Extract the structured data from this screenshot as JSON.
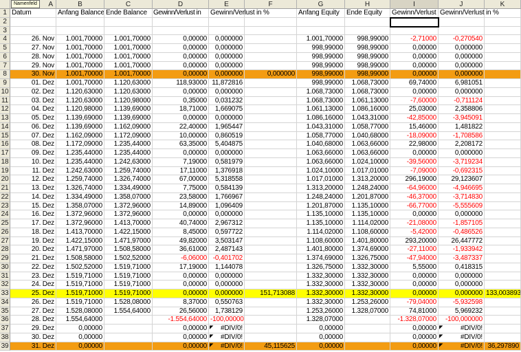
{
  "name_box_tooltip": "Namenfeld",
  "colors": {
    "negative": "#ff0000",
    "highlight_orange": "#f39c12",
    "highlight_yellow": "#ffff00"
  },
  "selected_cell": "I2",
  "columns": [
    "A",
    "B",
    "C",
    "D",
    "E",
    "F",
    "G",
    "H",
    "I",
    "J",
    "K"
  ],
  "header_row": [
    "Datum",
    "Anfang Balance",
    "Ende Balance",
    "Gewinn/Verlust in",
    "Gewinn/Verlust in %",
    "",
    "Anfang Equity",
    "Ende Equity",
    "Gewinn/Verlust",
    "Gewinn/Verlust in %",
    ""
  ],
  "rows": [
    {
      "n": 4,
      "c": [
        "26. Nov",
        "1.001,70000",
        "1.001,70000",
        "0,00000",
        "0,000000",
        "",
        "1.001,70000",
        "998,99000",
        "-2,71000",
        "-0,270540",
        ""
      ]
    },
    {
      "n": 5,
      "c": [
        "27. Nov",
        "1.001,70000",
        "1.001,70000",
        "0,00000",
        "0,000000",
        "",
        "998,99000",
        "998,99000",
        "0,00000",
        "0,000000",
        ""
      ]
    },
    {
      "n": 6,
      "c": [
        "28. Nov",
        "1.001,70000",
        "1.001,70000",
        "0,00000",
        "0,000000",
        "",
        "998,99000",
        "998,99000",
        "0,00000",
        "0,000000",
        ""
      ]
    },
    {
      "n": 7,
      "c": [
        "29. Nov",
        "1.001,70000",
        "1.001,70000",
        "0,00000",
        "0,000000",
        "",
        "998,99000",
        "998,99000",
        "0,00000",
        "0,000000",
        ""
      ]
    },
    {
      "n": 8,
      "hl": "orange",
      "c": [
        "30. Nov",
        "1.001,70000",
        "1.001,70000",
        "0,00000",
        "0,000000",
        "0,000000",
        "998,99000",
        "998,99000",
        "0,00000",
        "0,000000",
        ""
      ]
    },
    {
      "n": 9,
      "c": [
        "01. Dez",
        "1.001,70000",
        "1.120,63000",
        "118,93000",
        "11,872816",
        "",
        "998,99000",
        "1.068,73000",
        "69,74000",
        "6,981051",
        ""
      ]
    },
    {
      "n": 10,
      "c": [
        "02. Dez",
        "1.120,63000",
        "1.120,63000",
        "0,00000",
        "0,000000",
        "",
        "1.068,73000",
        "1.068,73000",
        "0,00000",
        "0,000000",
        ""
      ]
    },
    {
      "n": 11,
      "c": [
        "03. Dez",
        "1.120,63000",
        "1.120,98000",
        "0,35000",
        "0,031232",
        "",
        "1.068,73000",
        "1.061,13000",
        "-7,60000",
        "-0,711124",
        ""
      ]
    },
    {
      "n": 12,
      "c": [
        "04. Dez",
        "1.120,98000",
        "1.139,69000",
        "18,71000",
        "1,669075",
        "",
        "1.061,13000",
        "1.086,16000",
        "25,03000",
        "2,358806",
        ""
      ]
    },
    {
      "n": 13,
      "c": [
        "05. Dez",
        "1.139,69000",
        "1.139,69000",
        "0,00000",
        "0,000000",
        "",
        "1.086,16000",
        "1.043,31000",
        "-42,85000",
        "-3,945091",
        ""
      ]
    },
    {
      "n": 14,
      "c": [
        "06. Dez",
        "1.139,69000",
        "1.162,09000",
        "22,40000",
        "1,965447",
        "",
        "1.043,31000",
        "1.058,77000",
        "15,46000",
        "1,481822",
        ""
      ]
    },
    {
      "n": 15,
      "c": [
        "07. Dez",
        "1.162,09000",
        "1.172,09000",
        "10,00000",
        "0,860519",
        "",
        "1.058,77000",
        "1.040,68000",
        "-18,09000",
        "-1,708586",
        ""
      ]
    },
    {
      "n": 16,
      "c": [
        "08. Dez",
        "1.172,09000",
        "1.235,44000",
        "63,35000",
        "5,404875",
        "",
        "1.040,68000",
        "1.063,66000",
        "22,98000",
        "2,208172",
        ""
      ]
    },
    {
      "n": 17,
      "c": [
        "09. Dez",
        "1.235,44000",
        "1.235,44000",
        "0,00000",
        "0,000000",
        "",
        "1.063,66000",
        "1.063,66000",
        "0,00000",
        "0,000000",
        ""
      ]
    },
    {
      "n": 18,
      "c": [
        "10. Dez",
        "1.235,44000",
        "1.242,63000",
        "7,19000",
        "0,581979",
        "",
        "1.063,66000",
        "1.024,10000",
        "-39,56000",
        "-3,719234",
        ""
      ]
    },
    {
      "n": 19,
      "c": [
        "11. Dez",
        "1.242,63000",
        "1.259,74000",
        "17,11000",
        "1,376918",
        "",
        "1.024,10000",
        "1.017,01000",
        "-7,09000",
        "-0,692315",
        ""
      ]
    },
    {
      "n": 20,
      "c": [
        "12. Dez",
        "1.259,74000",
        "1.326,74000",
        "67,00000",
        "5,318558",
        "",
        "1.017,01000",
        "1.313,20000",
        "296,19000",
        "29,123607",
        ""
      ]
    },
    {
      "n": 21,
      "c": [
        "13. Dez",
        "1.326,74000",
        "1.334,49000",
        "7,75000",
        "0,584139",
        "",
        "1.313,20000",
        "1.248,24000",
        "-64,96000",
        "-4,946695",
        ""
      ]
    },
    {
      "n": 22,
      "c": [
        "14. Dez",
        "1.334,49000",
        "1.358,07000",
        "23,58000",
        "1,766967",
        "",
        "1.248,24000",
        "1.201,87000",
        "-46,37000",
        "-3,714830",
        ""
      ]
    },
    {
      "n": 23,
      "c": [
        "15. Dez",
        "1.358,07000",
        "1.372,96000",
        "14,89000",
        "1,096409",
        "",
        "1.201,87000",
        "1.135,10000",
        "-66,77000",
        "-5,555609",
        ""
      ]
    },
    {
      "n": 24,
      "c": [
        "16. Dez",
        "1.372,96000",
        "1.372,96000",
        "0,00000",
        "0,000000",
        "",
        "1.135,10000",
        "1.135,10000",
        "0,00000",
        "0,000000",
        ""
      ]
    },
    {
      "n": 25,
      "c": [
        "17. Dez",
        "1.372,96000",
        "1.413,70000",
        "40,74000",
        "2,967312",
        "",
        "1.135,10000",
        "1.114,02000",
        "-21,08000",
        "-1,857105",
        ""
      ]
    },
    {
      "n": 26,
      "c": [
        "18. Dez",
        "1.413,70000",
        "1.422,15000",
        "8,45000",
        "0,597722",
        "",
        "1.114,02000",
        "1.108,60000",
        "-5,42000",
        "-0,486526",
        ""
      ]
    },
    {
      "n": 27,
      "c": [
        "19. Dez",
        "1.422,15000",
        "1.471,97000",
        "49,82000",
        "3,503147",
        "",
        "1.108,60000",
        "1.401,80000",
        "293,20000",
        "26,447772",
        ""
      ]
    },
    {
      "n": 28,
      "c": [
        "20. Dez",
        "1.471,97000",
        "1.508,58000",
        "36,61000",
        "2,487143",
        "",
        "1.401,80000",
        "1.374,69000",
        "-27,11000",
        "-1,933942",
        ""
      ]
    },
    {
      "n": 29,
      "c": [
        "21. Dez",
        "1.508,58000",
        "1.502,52000",
        "-6,06000",
        "-0,401702",
        "",
        "1.374,69000",
        "1.326,75000",
        "-47,94000",
        "-3,487337",
        ""
      ]
    },
    {
      "n": 30,
      "c": [
        "22. Dez",
        "1.502,52000",
        "1.519,71000",
        "17,19000",
        "1,144078",
        "",
        "1.326,75000",
        "1.332,30000",
        "5,55000",
        "0,418315",
        ""
      ]
    },
    {
      "n": 31,
      "c": [
        "23. Dez",
        "1.519,71000",
        "1.519,71000",
        "0,00000",
        "0,000000",
        "",
        "1.332,30000",
        "1.332,30000",
        "0,00000",
        "0,000000",
        ""
      ]
    },
    {
      "n": 32,
      "c": [
        "24. Dez",
        "1.519,71000",
        "1.519,71000",
        "0,00000",
        "0,000000",
        "",
        "1.332,30000",
        "1.332,30000",
        "0,00000",
        "0,000000",
        ""
      ]
    },
    {
      "n": 33,
      "hl": "yellow",
      "c": [
        "25. Dez",
        "1.519,71000",
        "1.519,71000",
        "0,00000",
        "0,000000",
        "151,713088",
        "1.332,30000",
        "1.332,30000",
        "0,00000",
        "0,000000",
        "133,003893"
      ]
    },
    {
      "n": 34,
      "c": [
        "26. Dez",
        "1.519,71000",
        "1.528,08000",
        "8,37000",
        "0,550763",
        "",
        "1.332,30000",
        "1.253,26000",
        "-79,04000",
        "-5,932598",
        ""
      ]
    },
    {
      "n": 35,
      "c": [
        "27. Dez",
        "1.528,08000",
        "1.554,64000",
        "26,56000",
        "1,738129",
        "",
        "1.253,26000",
        "1.328,07000",
        "74,81000",
        "5,969232",
        ""
      ]
    },
    {
      "n": 36,
      "c": [
        "28. Dez",
        "1.554,64000",
        "",
        "-1.554,64000",
        "-100,000000",
        "",
        "1.328,07000",
        "",
        "-1.328,07000",
        "-100,000000",
        ""
      ]
    },
    {
      "n": 37,
      "c": [
        "29. Dez",
        "0,00000",
        "",
        "0,00000",
        "#DIV/0!",
        "",
        "0,00000",
        "",
        "0,00000",
        "#DIV/0!",
        ""
      ]
    },
    {
      "n": 38,
      "c": [
        "30. Dez",
        "0,00000",
        "",
        "0,00000",
        "#DIV/0!",
        "",
        "0,00000",
        "",
        "0,00000",
        "#DIV/0!",
        ""
      ]
    },
    {
      "n": 39,
      "hl": "orange",
      "c": [
        "31. Dez",
        "0,00000",
        "",
        "0,00000",
        "#DIV/0!",
        "45,115625",
        "0,00000",
        "",
        "0,00000",
        "#DIV/0!",
        "36,297890"
      ]
    }
  ]
}
